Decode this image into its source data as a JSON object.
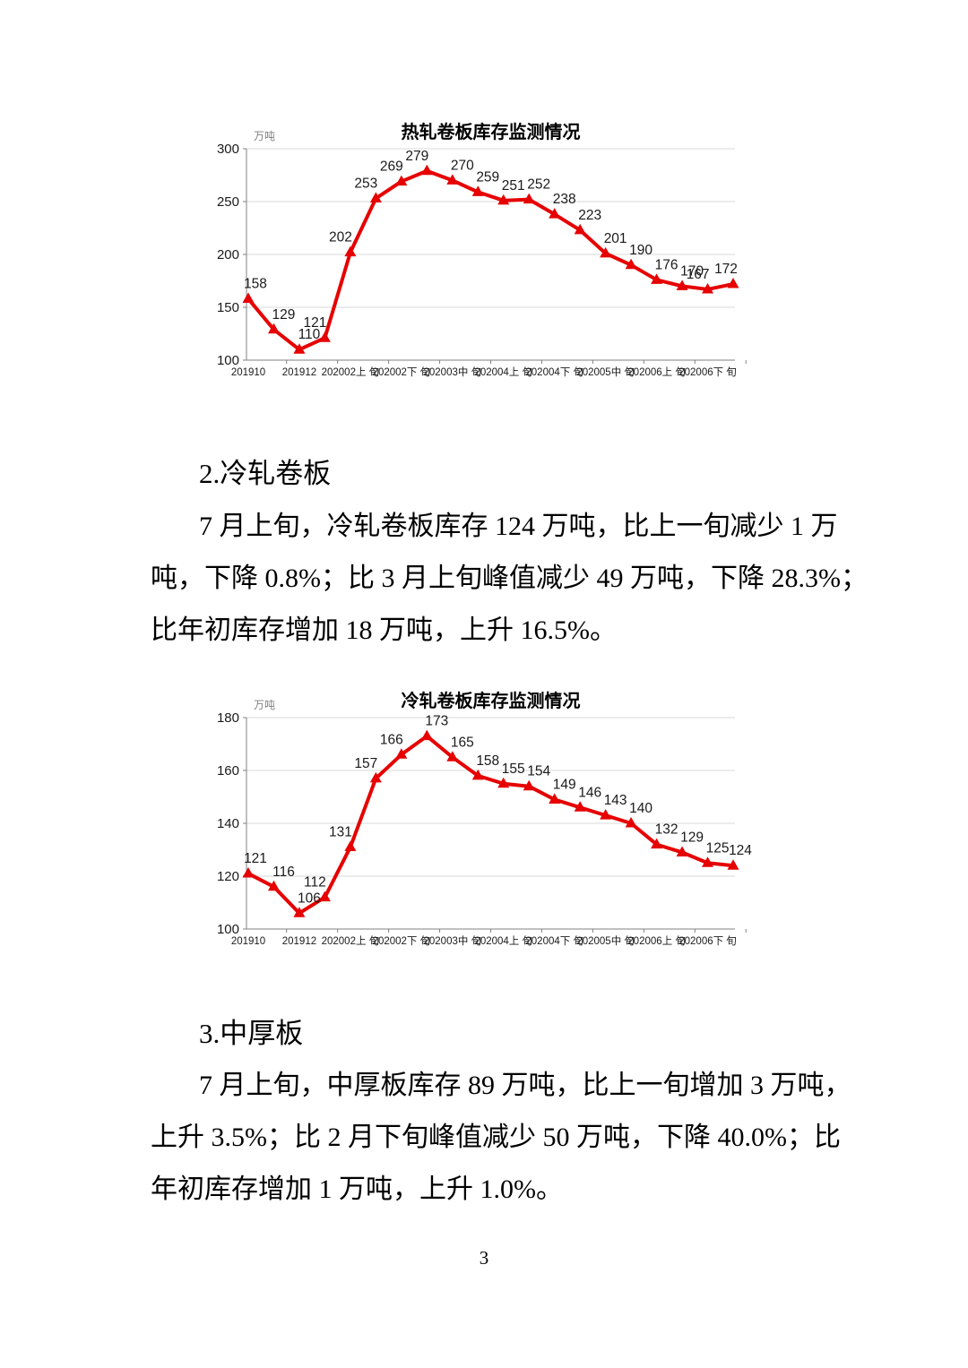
{
  "page": {
    "number": "3"
  },
  "section2": {
    "heading": "2.冷轧卷板",
    "lines": [
      "7 月上旬，冷轧卷板库存 124 万吨，比上一旬减少 1 万",
      "吨，下降 0.8%；比 3 月上旬峰值减少 49 万吨，下降 28.3%；",
      "比年初库存增加 18 万吨，上升 16.5%。"
    ]
  },
  "section3": {
    "heading": "3.中厚板",
    "lines": [
      "7 月上旬，中厚板库存 89 万吨，比上一旬增加 3 万吨，",
      "上升 3.5%；比 2 月下旬峰值减少 50 万吨，下降 40.0%；比",
      "年初库存增加 1 万吨，上升 1.0%。"
    ]
  },
  "chart_data": [
    {
      "type": "line",
      "title": "热轧卷板库存监测情况",
      "unit_label": "万吨",
      "values": [
        158,
        129,
        110,
        121,
        202,
        253,
        269,
        279,
        270,
        259,
        251,
        252,
        238,
        223,
        201,
        190,
        176,
        170,
        167,
        172
      ],
      "x_tick_labels": [
        "201910",
        "201912",
        "202002上 旬",
        "202002下 旬",
        "202003中 旬",
        "202004上 旬",
        "202004下 旬",
        "202005中 旬",
        "202006上 旬",
        "202006下 旬"
      ],
      "label_every": 2,
      "ylim": [
        100,
        300
      ],
      "ytick_step": 50,
      "line_color": "#e60000",
      "grid": true,
      "legend_position": "none"
    },
    {
      "type": "line",
      "title": "冷轧卷板库存监测情况",
      "unit_label": "万吨",
      "values": [
        121,
        116,
        106,
        112,
        131,
        157,
        166,
        173,
        165,
        158,
        155,
        154,
        149,
        146,
        143,
        140,
        132,
        129,
        125,
        124
      ],
      "x_tick_labels": [
        "201910",
        "201912",
        "202002上 旬",
        "202002下 旬",
        "202003中 旬",
        "202004上 旬",
        "202004下 旬",
        "202005中 旬",
        "202006上 旬",
        "202006下 旬"
      ],
      "label_every": 2,
      "ylim": [
        100,
        180
      ],
      "ytick_step": 20,
      "line_color": "#e60000",
      "grid": true,
      "legend_position": "none"
    }
  ]
}
